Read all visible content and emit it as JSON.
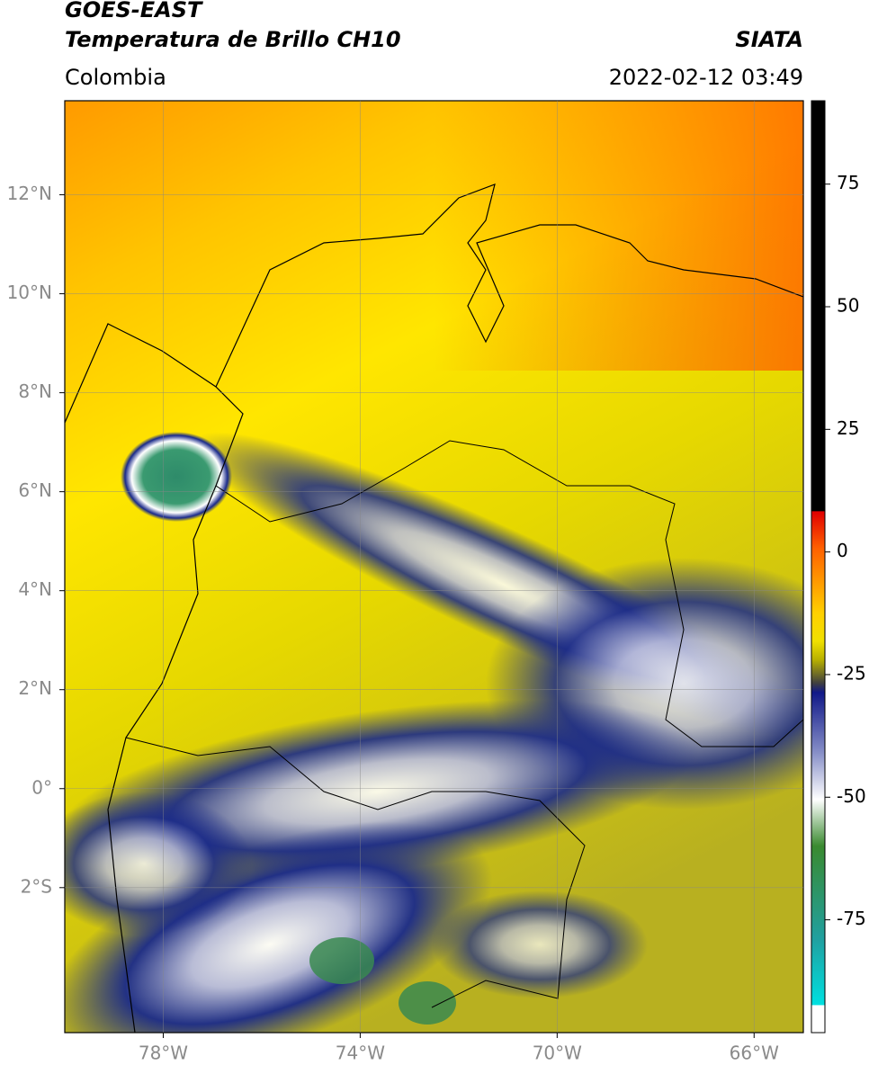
{
  "map": {
    "title": "GOES-EAST",
    "subtitle": "Temperatura de Brillo CH10",
    "source": "SIATA",
    "region": "Colombia",
    "datetime": "2022-02-12 03:49",
    "xlim": [
      -80,
      -65
    ],
    "ylim": [
      -4.93,
      13.9
    ],
    "xticks": [
      {
        "value": -78,
        "label": "78°W"
      },
      {
        "value": -74,
        "label": "74°W"
      },
      {
        "value": -70,
        "label": "70°W"
      },
      {
        "value": -66,
        "label": "66°W"
      }
    ],
    "yticks": [
      {
        "value": 12,
        "label": "12°N"
      },
      {
        "value": 10,
        "label": "10°N"
      },
      {
        "value": 8,
        "label": "8°N"
      },
      {
        "value": 6,
        "label": "6°N"
      },
      {
        "value": 4,
        "label": "4°N"
      },
      {
        "value": 2,
        "label": "2°N"
      },
      {
        "value": 0,
        "label": "0°"
      },
      {
        "value": -2,
        "label": "2°S"
      }
    ],
    "grid": true,
    "colorbar": {
      "lim": [
        -98,
        92
      ],
      "ticks": [
        75,
        50,
        25,
        0,
        -25,
        -50,
        -75
      ]
    }
  }
}
